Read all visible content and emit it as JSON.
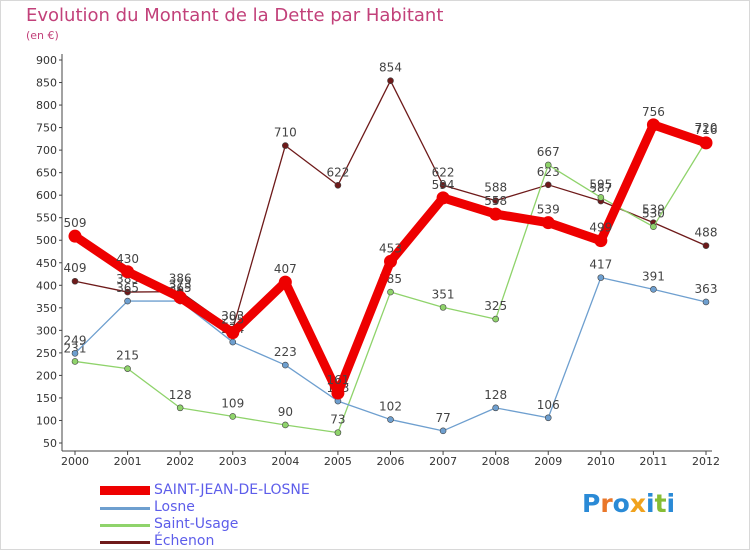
{
  "chart_data": {
    "type": "line",
    "title": "Evolution du Montant de la Dette par Habitant",
    "subtitle": "(en €)",
    "xlabel": "",
    "ylabel": "",
    "x": [
      "2000",
      "2001",
      "2002",
      "2003",
      "2004",
      "2005",
      "2006",
      "2007",
      "2008",
      "2009",
      "2010",
      "2011",
      "2012"
    ],
    "ylim": [
      50,
      900
    ],
    "yticks": [
      50,
      100,
      150,
      200,
      250,
      300,
      350,
      400,
      450,
      500,
      550,
      600,
      650,
      700,
      750,
      800,
      850,
      900
    ],
    "grid": false,
    "legend_position": "bottom",
    "series": [
      {
        "name": "Échenon",
        "color": "#6e1a1a",
        "values": [
          409,
          385,
          386,
          303,
          710,
          622,
          854,
          622,
          588,
          623,
          587,
          539,
          488
        ]
      },
      {
        "name": "Saint-Usage",
        "color": "#8fd36b",
        "values": [
          231,
          215,
          128,
          109,
          90,
          73,
          385,
          351,
          325,
          667,
          595,
          530,
          720
        ]
      },
      {
        "name": "Losne",
        "color": "#6e9fcf",
        "values": [
          249,
          365,
          365,
          274,
          223,
          143,
          102,
          77,
          128,
          106,
          417,
          391,
          363
        ]
      },
      {
        "name": "SAINT-JEAN-DE-LOSNE",
        "color": "#ee0000",
        "values": [
          509,
          430,
          373,
          295,
          407,
          161,
          453,
          594,
          558,
          539,
          499,
          756,
          716
        ]
      }
    ]
  },
  "legend": {
    "items": [
      {
        "label": "SAINT-JEAN-DE-LOSNE",
        "color": "#ee0000"
      },
      {
        "label": "Losne",
        "color": "#6e9fcf"
      },
      {
        "label": "Saint-Usage",
        "color": "#8fd36b"
      },
      {
        "label": "Échenon",
        "color": "#6e1a1a"
      }
    ]
  },
  "logo": {
    "text": "Proxiti",
    "letters": [
      {
        "char": "P",
        "color": "#2a8ad6"
      },
      {
        "char": "r",
        "color": "#e9772a"
      },
      {
        "char": "o",
        "color": "#2a8ad6"
      },
      {
        "char": "x",
        "color": "#f0a21d"
      },
      {
        "char": "i",
        "color": "#2a8ad6"
      },
      {
        "char": "t",
        "color": "#86bd35"
      },
      {
        "char": "i",
        "color": "#2a8ad6"
      }
    ]
  }
}
